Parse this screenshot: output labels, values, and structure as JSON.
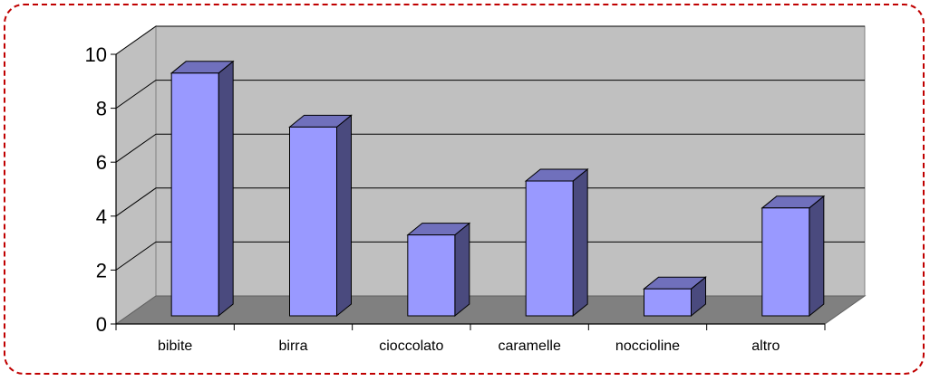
{
  "chart_data": {
    "type": "bar",
    "title": "",
    "xlabel": "",
    "ylabel": "",
    "categories": [
      "bibite",
      "birra",
      "cioccolato",
      "caramelle",
      "noccioline",
      "altro"
    ],
    "values": [
      9,
      7,
      3,
      5,
      1,
      4
    ],
    "ylim": [
      0,
      10
    ],
    "yticks": [
      "0",
      "2",
      "4",
      "6",
      "8",
      "10"
    ],
    "grid": true,
    "legend": "none",
    "style": "3d-column",
    "colors": {
      "bar_front": "#9999ff",
      "bar_side": "#4a4a7e",
      "bar_top": "#7070bc",
      "wall": "#c0c0c0",
      "floor": "#808080",
      "frame_border": "#c00000"
    }
  }
}
